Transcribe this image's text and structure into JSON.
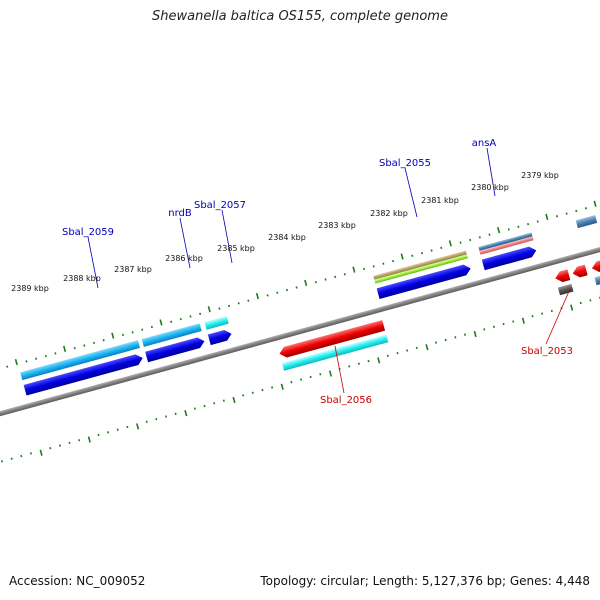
{
  "title": "Shewanella baltica OS155, complete genome",
  "footer": {
    "accession": "Accession: NC_009052",
    "summary": "Topology: circular; Length: 5,127,376 bp; Genes: 4,448"
  },
  "colors": {
    "backbone": "#808080",
    "tick": "#1f7a1f",
    "forward_label": "#0000b8",
    "reverse_label": "#cc0000"
  },
  "ticks": [
    {
      "label": "2379 kbp"
    },
    {
      "label": "2380 kbp"
    },
    {
      "label": "2381 kbp"
    },
    {
      "label": "2382 kbp"
    },
    {
      "label": "2383 kbp"
    },
    {
      "label": "2384 kbp"
    },
    {
      "label": "2385 kbp"
    },
    {
      "label": "2386 kbp"
    },
    {
      "label": "2387 kbp"
    },
    {
      "label": "2388 kbp"
    },
    {
      "label": "2389 kbp"
    }
  ],
  "gene_labels": [
    {
      "name": "ansA",
      "strand": "forward"
    },
    {
      "name": "Sbal_2055",
      "strand": "forward"
    },
    {
      "name": "Sbal_2057",
      "strand": "forward"
    },
    {
      "name": "nrdB",
      "strand": "forward"
    },
    {
      "name": "Sbal_2059",
      "strand": "forward"
    },
    {
      "name": "Sbal_2056",
      "strand": "reverse"
    },
    {
      "name": "Sbal_2053",
      "strand": "reverse"
    }
  ]
}
